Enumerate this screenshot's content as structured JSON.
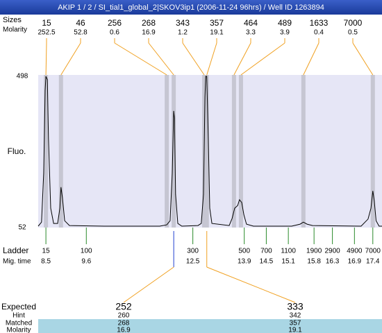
{
  "title": "AKIP 1 / 2 / SI_tial1_global_2|SKOV3ip1 (2006-11-24 96hrs) / Well ID 1263894",
  "chart_data": {
    "type": "electropherogram",
    "ylabel": "Fluo.",
    "ylim": [
      52,
      498
    ],
    "yticks": [
      498,
      52
    ],
    "xlim": [
      8.29,
      17.65
    ],
    "trace": {
      "x": [
        8.29,
        8.38,
        8.44,
        8.48,
        8.5,
        8.54,
        8.57,
        8.63,
        8.71,
        8.82,
        8.88,
        8.91,
        8.95,
        9.01,
        9.14,
        10.09,
        11.6,
        11.79,
        11.88,
        11.94,
        11.98,
        12.0,
        12.03,
        12.09,
        12.2,
        12.64,
        12.73,
        12.79,
        12.83,
        12.85,
        12.88,
        12.92,
        12.96,
        13.02,
        13.49,
        13.57,
        13.64,
        13.72,
        13.77,
        13.83,
        13.89,
        13.96,
        14.15,
        15.19,
        15.42,
        15.51,
        15.61,
        15.76,
        17.08,
        17.27,
        17.35,
        17.4,
        17.44,
        17.49,
        17.57,
        17.65
      ],
      "y": [
        56,
        68,
        212,
        457,
        498,
        488,
        314,
        109,
        64,
        64,
        109,
        171,
        140,
        72,
        58,
        56,
        56,
        60,
        72,
        212,
        396,
        375,
        150,
        64,
        56,
        58,
        64,
        150,
        437,
        498,
        498,
        314,
        109,
        64,
        58,
        79,
        109,
        117,
        134,
        126,
        89,
        62,
        56,
        56,
        62,
        68,
        62,
        58,
        56,
        77,
        109,
        160,
        130,
        72,
        56,
        56
      ]
    },
    "peaks": {
      "size_label": "Sizes",
      "molarity_label": "Molarity",
      "sizes": [
        15,
        46,
        256,
        268,
        343,
        357,
        464,
        489,
        1633,
        7000
      ],
      "molarity": [
        252.5,
        52.8,
        0.6,
        16.9,
        1.2,
        19.1,
        3.3,
        3.9,
        0.4,
        0.5
      ],
      "times": [
        8.5,
        8.91,
        11.79,
        11.98,
        12.81,
        12.88,
        13.62,
        13.81,
        15.51,
        17.4
      ]
    },
    "ladder": {
      "label": "Ladder",
      "time_label": "Mig. time",
      "sizes": [
        15,
        100,
        300,
        500,
        700,
        1100,
        1900,
        2900,
        4900,
        7000
      ],
      "times": [
        8.5,
        9.6,
        12.5,
        13.9,
        14.5,
        15.1,
        15.8,
        16.3,
        16.9,
        17.4
      ]
    },
    "expected": {
      "expected_label": "Expected",
      "hint_label": "Hint",
      "matched_label": "Matched",
      "molarity_label": "Molarity",
      "expected": [
        252,
        333
      ],
      "hint": [
        260,
        342
      ],
      "matched": [
        268,
        357
      ],
      "molarity": [
        16.9,
        19.1
      ]
    }
  }
}
